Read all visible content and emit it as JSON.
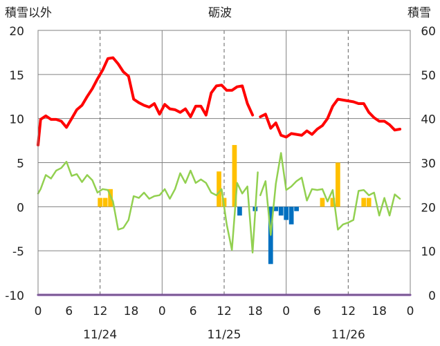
{
  "chart_data": {
    "type": "line",
    "title": "砺波",
    "ylabel_left": "積雪以外",
    "ylabel_right": "積雪",
    "ylim_left": [
      -10,
      20
    ],
    "ylim_right": [
      0,
      60
    ],
    "yticks_left": [
      "20",
      "15",
      "10",
      "5",
      "0",
      "-5",
      "-10"
    ],
    "yticks_right": [
      "60",
      "50",
      "40",
      "30",
      "20",
      "10",
      "0"
    ],
    "xlim_hours": [
      0,
      72
    ],
    "xtick_labels": [
      "0",
      "6",
      "12",
      "18",
      "0",
      "6",
      "12",
      "18",
      "0",
      "6",
      "12",
      "18",
      "0"
    ],
    "date_labels": [
      "11/24",
      "11/25",
      "11/26"
    ],
    "grid": "dashed vertical at 12h, solid at day boundaries, horizontal every 5",
    "colors": {
      "temperature": "#ff0000",
      "humidity_like": "#92d050",
      "precip_pos": "#ffc000",
      "precip_neg": "#0070c0",
      "snow_depth": "#7030a0",
      "grid": "#808080"
    },
    "series": [
      {
        "key": "red",
        "values": [
          [
            0,
            7.0
          ],
          [
            0.5,
            9.9
          ],
          [
            1.5,
            10.3
          ],
          [
            2.5,
            9.9
          ],
          [
            3.5,
            9.9
          ],
          [
            4.5,
            9.7
          ],
          [
            5.5,
            9.0
          ],
          [
            6.5,
            10.0
          ],
          [
            7.5,
            11.0
          ],
          [
            8.5,
            11.5
          ],
          [
            9.5,
            12.5
          ],
          [
            10.5,
            13.4
          ],
          [
            11.5,
            14.5
          ],
          [
            12.5,
            15.5
          ],
          [
            13.5,
            16.8
          ],
          [
            14.5,
            16.9
          ],
          [
            15.5,
            16.2
          ],
          [
            16.5,
            15.3
          ],
          [
            17.5,
            14.8
          ],
          [
            18.5,
            12.2
          ],
          [
            19.5,
            11.8
          ],
          [
            20.5,
            11.5
          ],
          [
            21.5,
            11.3
          ],
          [
            22.5,
            11.7
          ],
          [
            23.5,
            10.5
          ],
          [
            24.5,
            11.6
          ],
          [
            25.5,
            11.1
          ],
          [
            26.5,
            11.0
          ],
          [
            27.5,
            10.7
          ],
          [
            28.5,
            11.1
          ],
          [
            29.5,
            10.2
          ],
          [
            30.5,
            11.4
          ],
          [
            31.5,
            11.4
          ],
          [
            32.5,
            10.4
          ],
          [
            33.5,
            12.9
          ],
          [
            34.5,
            13.7
          ],
          [
            35.5,
            13.8
          ],
          [
            36.5,
            13.2
          ],
          [
            37.5,
            13.2
          ],
          [
            38.5,
            13.6
          ],
          [
            39.5,
            13.7
          ],
          [
            40.5,
            11.7
          ],
          [
            41.5,
            10.4
          ],
          null,
          [
            43,
            10.2
          ],
          [
            44,
            10.5
          ],
          [
            45,
            8.9
          ],
          [
            46,
            9.5
          ],
          [
            47,
            8.1
          ],
          [
            48,
            7.9
          ],
          [
            49,
            8.3
          ],
          [
            50,
            8.2
          ],
          [
            51,
            8.1
          ],
          [
            52,
            8.6
          ],
          [
            53,
            8.2
          ],
          [
            54,
            8.8
          ],
          [
            55,
            9.2
          ],
          [
            56,
            10.0
          ],
          [
            57,
            11.4
          ],
          [
            58,
            12.2
          ],
          [
            59,
            12.1
          ],
          [
            60,
            12.0
          ],
          [
            61,
            11.9
          ],
          [
            62,
            11.7
          ],
          [
            63,
            11.7
          ],
          [
            64,
            10.7
          ],
          [
            65,
            10.1
          ],
          [
            66,
            9.7
          ],
          [
            67,
            9.7
          ],
          [
            68,
            9.3
          ],
          [
            69,
            8.7
          ],
          [
            70,
            8.8
          ]
        ]
      },
      {
        "key": "green",
        "values": [
          [
            0,
            1.5
          ],
          [
            0.5,
            2.0
          ],
          [
            1.5,
            3.6
          ],
          [
            2.5,
            3.2
          ],
          [
            3.5,
            4.1
          ],
          [
            4.5,
            4.4
          ],
          [
            5.5,
            5.1
          ],
          [
            6.5,
            3.5
          ],
          [
            7.5,
            3.7
          ],
          [
            8.5,
            2.8
          ],
          [
            9.5,
            3.6
          ],
          [
            10.5,
            3.0
          ],
          [
            11.5,
            1.6
          ],
          [
            12.5,
            2.0
          ],
          [
            13.5,
            1.9
          ],
          [
            14.5,
            0.6
          ],
          [
            15.5,
            -2.6
          ],
          [
            16.5,
            -2.4
          ],
          [
            17.5,
            -1.5
          ],
          [
            18.5,
            1.2
          ],
          [
            19.5,
            1.0
          ],
          [
            20.5,
            1.6
          ],
          [
            21.5,
            0.9
          ],
          [
            22.5,
            1.2
          ],
          [
            23.5,
            1.3
          ],
          [
            24.5,
            2.0
          ],
          [
            25.5,
            0.9
          ],
          [
            26.5,
            2.0
          ],
          [
            27.5,
            3.8
          ],
          [
            28.5,
            2.7
          ],
          [
            29.5,
            4.1
          ],
          [
            30.5,
            2.7
          ],
          [
            31.5,
            3.1
          ],
          [
            32.5,
            2.7
          ],
          [
            33.5,
            1.6
          ],
          [
            34.5,
            1.3
          ],
          [
            35.5,
            2.0
          ],
          [
            36.5,
            -2.0
          ],
          [
            37.5,
            -4.9
          ],
          [
            38.5,
            2.7
          ],
          [
            39.5,
            1.5
          ],
          [
            40.5,
            2.3
          ],
          [
            41.5,
            -5.2
          ],
          [
            42.5,
            3.9
          ],
          null,
          [
            43,
            1.3
          ],
          [
            44,
            2.9
          ],
          [
            45,
            -3.2
          ],
          [
            46,
            2.6
          ],
          [
            47,
            6.1
          ],
          [
            48,
            1.9
          ],
          [
            49,
            2.3
          ],
          [
            50,
            2.9
          ],
          [
            51,
            3.3
          ],
          [
            52,
            0.7
          ],
          [
            53,
            2.0
          ],
          [
            54,
            1.9
          ],
          [
            55,
            2.0
          ],
          [
            56,
            0.6
          ],
          [
            57,
            1.9
          ],
          [
            58,
            -2.6
          ],
          [
            59,
            -2.0
          ],
          [
            60,
            -1.8
          ],
          [
            61,
            -1.5
          ],
          [
            62,
            1.8
          ],
          [
            63,
            1.9
          ],
          [
            64,
            1.3
          ],
          [
            65,
            1.6
          ],
          [
            66,
            -1.0
          ],
          [
            67,
            1.0
          ],
          [
            68,
            -1.0
          ],
          [
            69,
            1.4
          ],
          [
            70,
            0.9
          ]
        ]
      },
      {
        "key": "purple",
        "values": [
          [
            0,
            0
          ],
          [
            72,
            0
          ]
        ],
        "axis": "right"
      }
    ],
    "bars": [
      {
        "x": 12,
        "v": 1.0
      },
      {
        "x": 13,
        "v": 1.0
      },
      {
        "x": 14,
        "v": 2.0
      },
      {
        "x": 35,
        "v": 4.0
      },
      {
        "x": 36,
        "v": 1.0
      },
      {
        "x": 38,
        "v": 7.0
      },
      {
        "x": 39,
        "v": -1.0
      },
      {
        "x": 42,
        "v": -0.5
      },
      {
        "x": 45,
        "v": -6.5
      },
      {
        "x": 46,
        "v": -0.5
      },
      {
        "x": 47,
        "v": -1.0
      },
      {
        "x": 48,
        "v": -1.5
      },
      {
        "x": 49,
        "v": -2.0
      },
      {
        "x": 50,
        "v": -0.5
      },
      {
        "x": 55,
        "v": 1.0
      },
      {
        "x": 57,
        "v": 1.0
      },
      {
        "x": 58,
        "v": 5.0
      },
      {
        "x": 63,
        "v": 1.0
      },
      {
        "x": 64,
        "v": 1.0
      }
    ]
  }
}
